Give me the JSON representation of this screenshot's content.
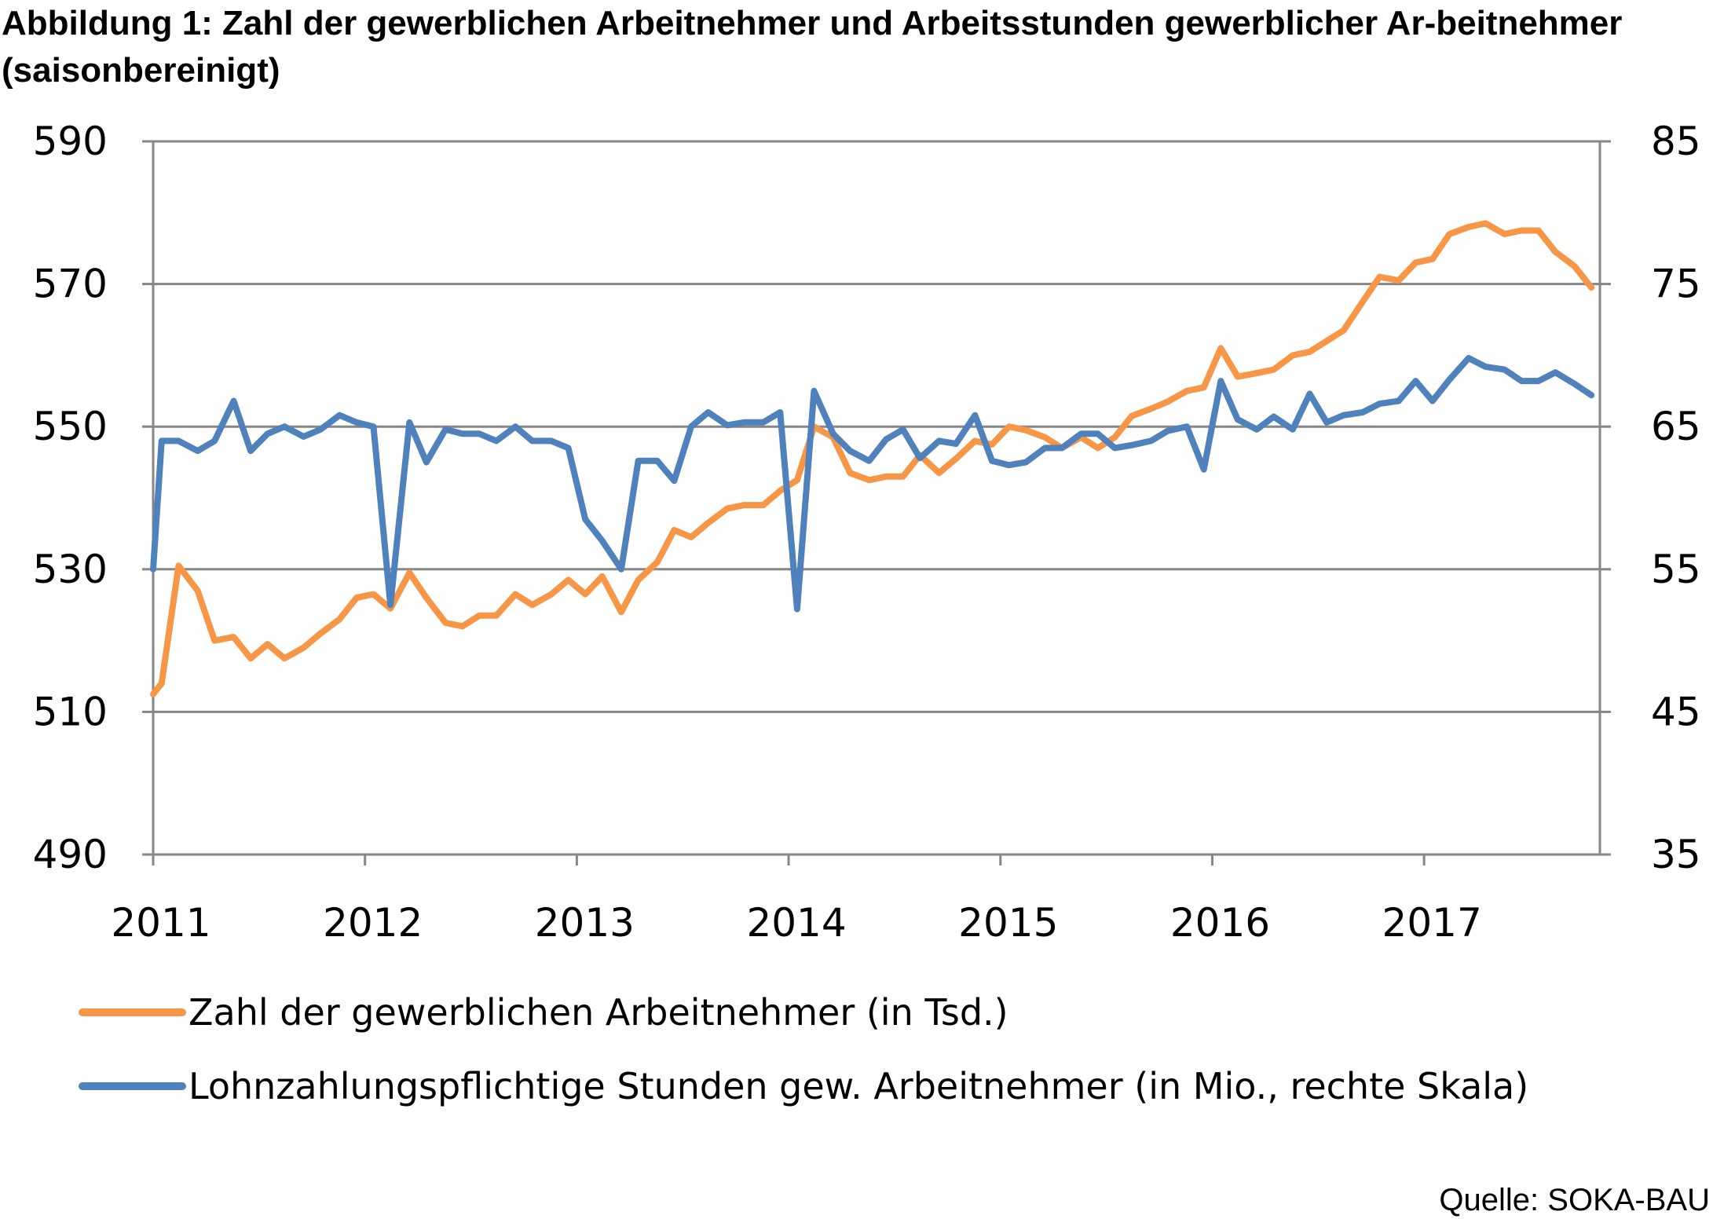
{
  "title": "Abbildung 1: Zahl der gewerblichen Arbeitnehmer und Arbeitsstunden gewerblicher Ar-beitnehmer (saisonbereinigt)",
  "source": "Quelle: SOKA-BAU",
  "colors": {
    "series1": "#F79646",
    "series2": "#4F81BD",
    "grid": "#868686"
  },
  "chart_data": {
    "type": "line",
    "title": "Abbildung 1: Zahl der gewerblichen Arbeitnehmer und Arbeitsstunden gewerblicher Ar-beitnehmer (saisonbereinigt)",
    "xlabel": "",
    "ylabel": "",
    "ylim": [
      490,
      590
    ],
    "y2lim": [
      35,
      85
    ],
    "yticks": [
      490,
      510,
      530,
      550,
      570,
      590
    ],
    "y2ticks": [
      35,
      45,
      55,
      65,
      75,
      85
    ],
    "xticks": [
      "2011",
      "2012",
      "2013",
      "2014",
      "2015",
      "2016",
      "2017"
    ],
    "x_start": 2011,
    "x_end": 2017.83,
    "grid": true,
    "legend": "bottom",
    "series": [
      {
        "name": "Zahl der gewerblichen Arbeitnehmer (in Tsd.)",
        "axis": "left",
        "color": "#F79646",
        "x": [
          2011.0,
          2011.04,
          2011.12,
          2011.21,
          2011.29,
          2011.38,
          2011.46,
          2011.54,
          2011.62,
          2011.71,
          2011.79,
          2011.88,
          2011.96,
          2012.04,
          2012.12,
          2012.21,
          2012.29,
          2012.38,
          2012.46,
          2012.54,
          2012.62,
          2012.71,
          2012.79,
          2012.88,
          2012.96,
          2013.04,
          2013.12,
          2013.21,
          2013.29,
          2013.38,
          2013.46,
          2013.54,
          2013.62,
          2013.71,
          2013.79,
          2013.88,
          2013.96,
          2014.04,
          2014.12,
          2014.21,
          2014.29,
          2014.38,
          2014.46,
          2014.54,
          2014.62,
          2014.71,
          2014.79,
          2014.88,
          2014.96,
          2015.04,
          2015.12,
          2015.21,
          2015.29,
          2015.38,
          2015.46,
          2015.54,
          2015.62,
          2015.71,
          2015.79,
          2015.88,
          2015.96,
          2016.04,
          2016.12,
          2016.21,
          2016.29,
          2016.38,
          2016.46,
          2016.54,
          2016.62,
          2016.71,
          2016.79,
          2016.88,
          2016.96,
          2017.04,
          2017.12,
          2017.21,
          2017.29,
          2017.38,
          2017.46,
          2017.54,
          2017.62,
          2017.71,
          2017.79
        ],
        "values": [
          512.5,
          514,
          530.5,
          527,
          520,
          520.5,
          517.5,
          519.5,
          517.5,
          519,
          521,
          523,
          526,
          526.5,
          524.5,
          529.5,
          526,
          522.5,
          522,
          523.5,
          523.5,
          526.5,
          525,
          526.5,
          528.5,
          526.5,
          529,
          524,
          528.5,
          531,
          535.5,
          534.5,
          536.5,
          538.5,
          539,
          539,
          541,
          542.5,
          550,
          548.5,
          543.5,
          542.5,
          543,
          543,
          546,
          543.5,
          545.5,
          548,
          547.5,
          550,
          549.5,
          548.5,
          547,
          548.5,
          547,
          548.5,
          551.5,
          552.5,
          553.5,
          555,
          555.5,
          561,
          557,
          557.5,
          558,
          560,
          560.5,
          562,
          563.5,
          567.5,
          571,
          570.5,
          573,
          573.5,
          577,
          578,
          578.5,
          577,
          577.5,
          577.5,
          574.5,
          572.5,
          569.5
        ]
      },
      {
        "name": "Lohnzahlungspflichtige Stunden gew. Arbeitnehmer (in Mio., rechte Skala)",
        "axis": "right",
        "color": "#4F81BD",
        "x": [
          2011.0,
          2011.04,
          2011.12,
          2011.21,
          2011.29,
          2011.38,
          2011.46,
          2011.54,
          2011.62,
          2011.71,
          2011.79,
          2011.88,
          2011.96,
          2012.04,
          2012.12,
          2012.21,
          2012.29,
          2012.38,
          2012.46,
          2012.54,
          2012.62,
          2012.71,
          2012.79,
          2012.88,
          2012.96,
          2013.04,
          2013.12,
          2013.21,
          2013.29,
          2013.38,
          2013.46,
          2013.54,
          2013.62,
          2013.71,
          2013.79,
          2013.88,
          2013.96,
          2014.04,
          2014.12,
          2014.21,
          2014.29,
          2014.38,
          2014.46,
          2014.54,
          2014.62,
          2014.71,
          2014.79,
          2014.88,
          2014.96,
          2015.04,
          2015.12,
          2015.21,
          2015.29,
          2015.38,
          2015.46,
          2015.54,
          2015.62,
          2015.71,
          2015.79,
          2015.88,
          2015.96,
          2016.04,
          2016.12,
          2016.21,
          2016.29,
          2016.38,
          2016.46,
          2016.54,
          2016.62,
          2016.71,
          2016.79,
          2016.88,
          2016.96,
          2017.04,
          2017.12,
          2017.21,
          2017.29,
          2017.38,
          2017.46,
          2017.54,
          2017.62,
          2017.71,
          2017.79
        ],
        "values": [
          55,
          64,
          64,
          63.3,
          64,
          66.8,
          63.3,
          64.5,
          65,
          64.3,
          64.8,
          65.8,
          65.3,
          65,
          52.5,
          65.3,
          62.5,
          64.8,
          64.5,
          64.5,
          64,
          65,
          64,
          64,
          63.5,
          58.5,
          57,
          55,
          62.6,
          62.6,
          61.2,
          65,
          66,
          65.1,
          65.3,
          65.3,
          66,
          52.2,
          67.5,
          64.5,
          63.3,
          62.6,
          64.1,
          64.8,
          62.8,
          64,
          63.8,
          65.8,
          62.6,
          62.3,
          62.5,
          63.5,
          63.5,
          64.5,
          64.5,
          63.5,
          63.7,
          64,
          64.7,
          65,
          62,
          68.2,
          65.5,
          64.8,
          65.7,
          64.8,
          67.3,
          65.3,
          65.8,
          66,
          66.6,
          66.8,
          68.2,
          66.8,
          68.3,
          69.8,
          69.2,
          69,
          68.2,
          68.2,
          68.8,
          68,
          67.2
        ]
      }
    ]
  }
}
